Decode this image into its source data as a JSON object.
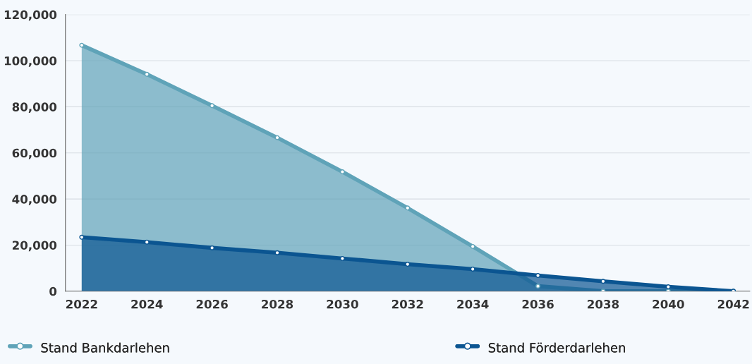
{
  "chart_data": {
    "type": "area",
    "x": [
      2022,
      2024,
      2026,
      2028,
      2030,
      2032,
      2034,
      2036,
      2038,
      2040,
      2042
    ],
    "series": [
      {
        "name": "Stand Bankdarlehen",
        "color": "#5fa3b8",
        "values": [
          106700,
          94100,
          80500,
          66600,
          51800,
          36100,
          19400,
          2200,
          0,
          0,
          0
        ]
      },
      {
        "name": "Stand Förderdarlehen",
        "color": "#0b5591",
        "values": [
          23400,
          21300,
          18800,
          16700,
          14200,
          11700,
          9600,
          6800,
          4300,
          1900,
          0
        ]
      }
    ],
    "xlim": [
      2021.5,
      2042.5
    ],
    "xticks": [
      2022,
      2024,
      2026,
      2028,
      2030,
      2032,
      2034,
      2036,
      2038,
      2040,
      2042
    ],
    "ylim": [
      0,
      120000
    ],
    "yticks": [
      {
        "value": 0,
        "label": "0"
      },
      {
        "value": 20000,
        "label": "20,000"
      },
      {
        "value": 40000,
        "label": "40,000"
      },
      {
        "value": 60000,
        "label": "60,000"
      },
      {
        "value": 80000,
        "label": "80,000"
      },
      {
        "value": 100000,
        "label": "100,000"
      },
      {
        "value": 120000,
        "label": "120,000"
      }
    ],
    "grid": "y",
    "legend": "bottom",
    "marker": "circle",
    "line_style": "solid"
  }
}
